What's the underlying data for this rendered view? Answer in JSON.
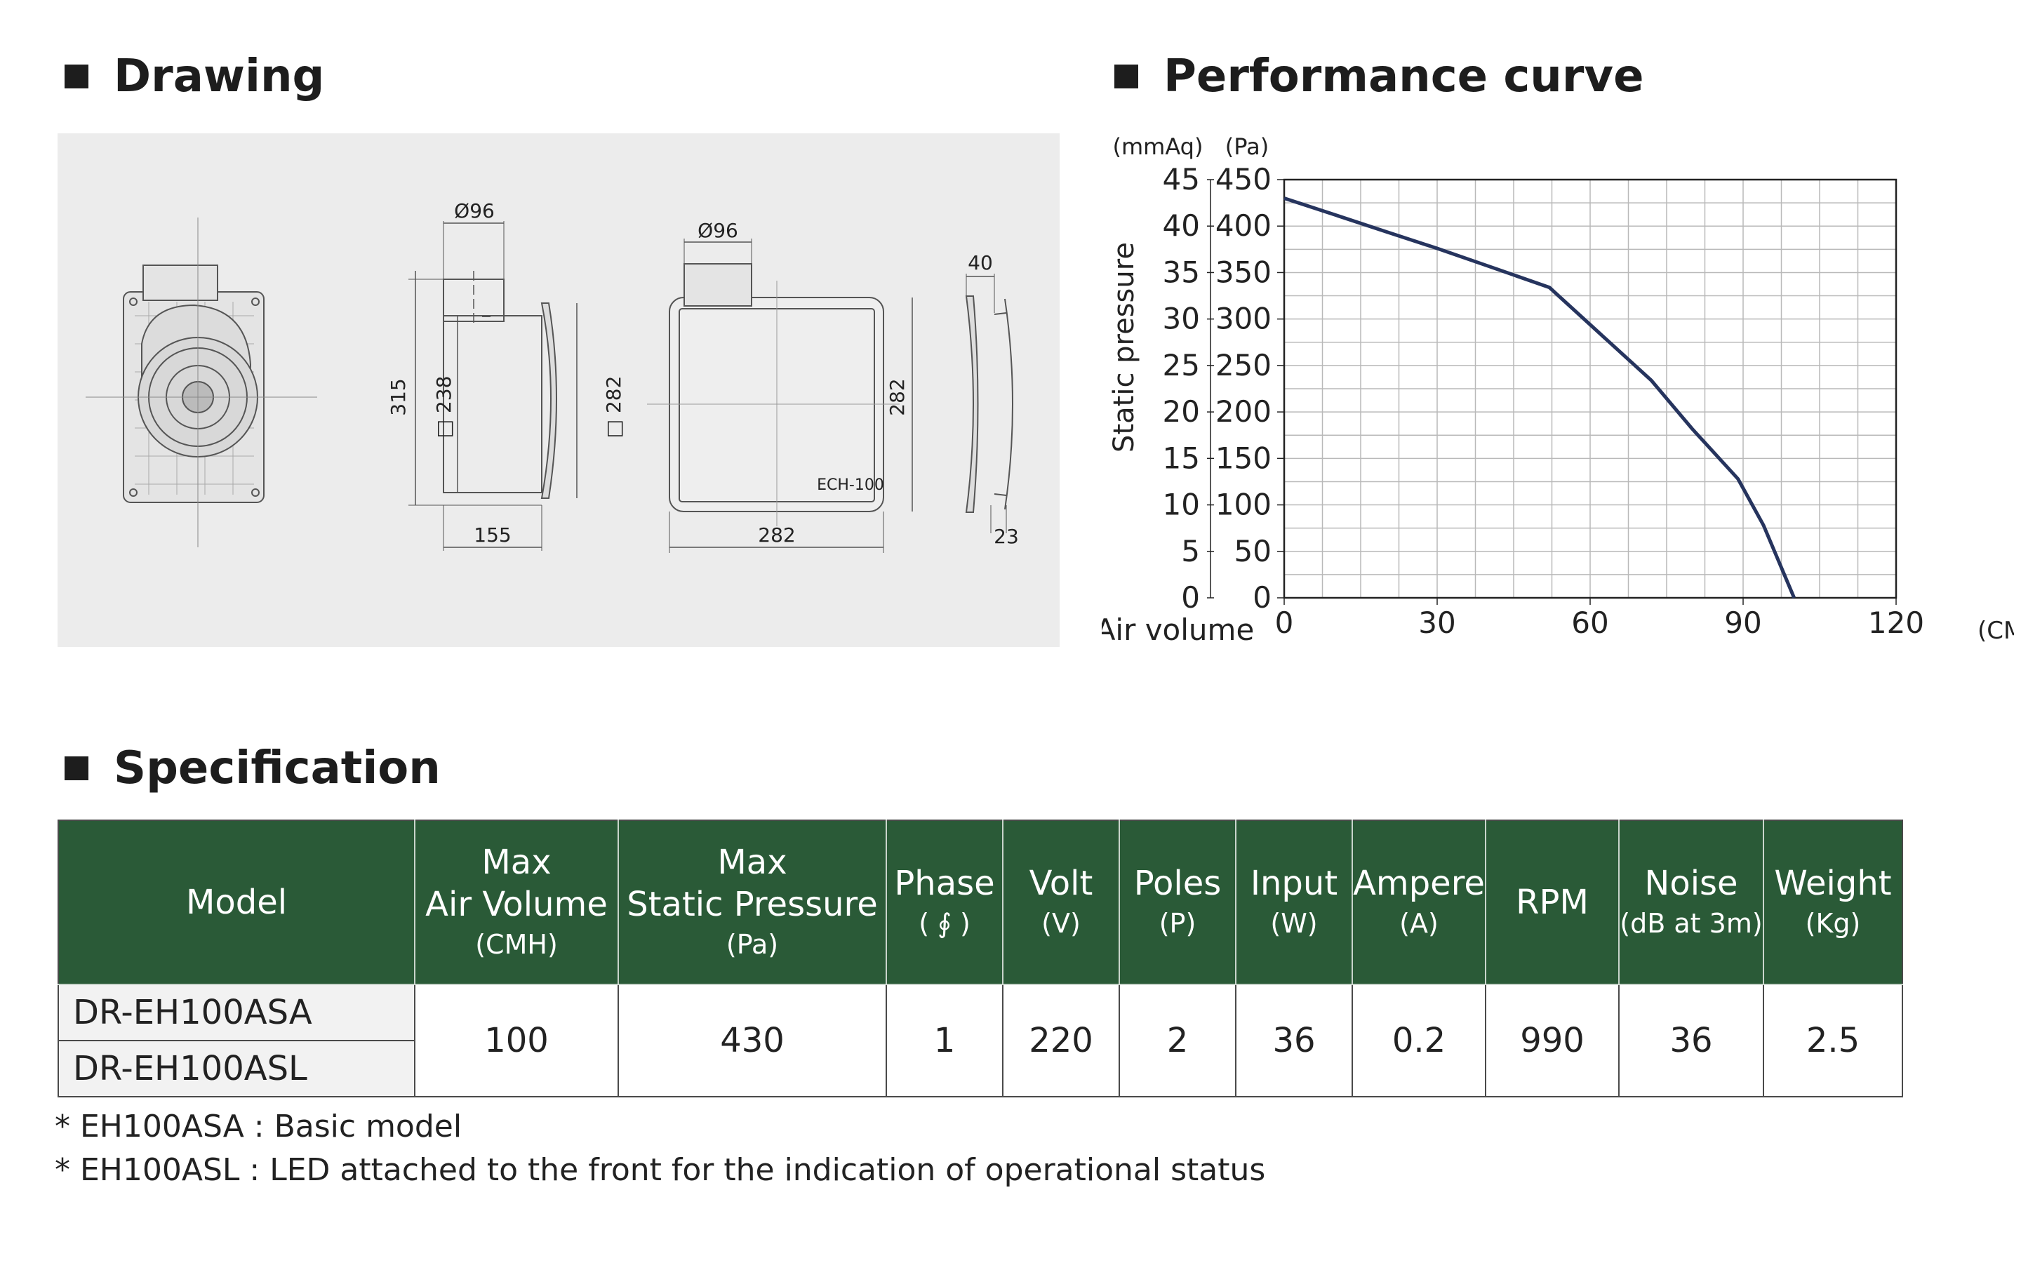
{
  "sections": {
    "drawing": "Drawing",
    "performance": "Performance curve",
    "specification": "Specification"
  },
  "drawing": {
    "dims": {
      "diameter_side": "Ø96",
      "diameter_back": "Ø96",
      "height_315": "315",
      "square_238": "□ 238",
      "square_282_side": "□ 282",
      "depth_155": "155",
      "width_282": "282",
      "height_282": "282",
      "model_label": "ECH-100",
      "depth_40": "40",
      "depth_23": "23"
    }
  },
  "performance_curve": {
    "left_unit": "(mmAq)",
    "right_unit": "(Pa)",
    "y_label": "Static pressure",
    "x_label": "Air volume",
    "x_unit": "(CMH)"
  },
  "chart_data": {
    "type": "line",
    "title": "Performance curve",
    "xlabel": "Air volume",
    "x_unit": "(CMH)",
    "ylabel": "Static pressure",
    "y_units": [
      "(mmAq)",
      "(Pa)"
    ],
    "xlim": [
      0,
      120
    ],
    "ylim": [
      0,
      450
    ],
    "grid": true,
    "x_ticks": [
      "0",
      "30",
      "60",
      "90",
      "120"
    ],
    "y_ticks_mmaq": [
      "0",
      "5",
      "10",
      "15",
      "20",
      "25",
      "30",
      "35",
      "40",
      "45"
    ],
    "y_ticks_pa": [
      "0",
      "50",
      "100",
      "150",
      "200",
      "250",
      "300",
      "350",
      "400",
      "450"
    ],
    "series": [
      {
        "color": "#26345e",
        "x": [
          0,
          10,
          20,
          30,
          40,
          52,
          62,
          72,
          80,
          89,
          94,
          100
        ],
        "y": [
          430,
          412,
          394,
          376,
          357,
          334,
          284,
          234,
          182,
          128,
          78,
          0
        ]
      }
    ]
  },
  "spec": {
    "headers": [
      {
        "main": "Model",
        "sub": ""
      },
      {
        "main": "Max\nAir Volume",
        "sub": "(CMH)"
      },
      {
        "main": "Max\nStatic Pressure",
        "sub": "(Pa)"
      },
      {
        "main": "Phase",
        "sub": "( ∮ )"
      },
      {
        "main": "Volt",
        "sub": "(V)"
      },
      {
        "main": "Poles",
        "sub": "(P)"
      },
      {
        "main": "Input",
        "sub": "(W)"
      },
      {
        "main": "Ampere",
        "sub": "(A)"
      },
      {
        "main": "RPM",
        "sub": ""
      },
      {
        "main": "Noise",
        "sub": "(dB at 3m)"
      },
      {
        "main": "Weight",
        "sub": "(Kg)"
      }
    ],
    "models": [
      "DR-EH100ASA",
      "DR-EH100ASL"
    ],
    "values": [
      "100",
      "430",
      "1",
      "220",
      "2",
      "36",
      "0.2",
      "990",
      "36",
      "2.5"
    ]
  },
  "notes": [
    "* EH100ASA : Basic model",
    "* EH100ASL : LED attached to the front for the indication of operational status"
  ]
}
